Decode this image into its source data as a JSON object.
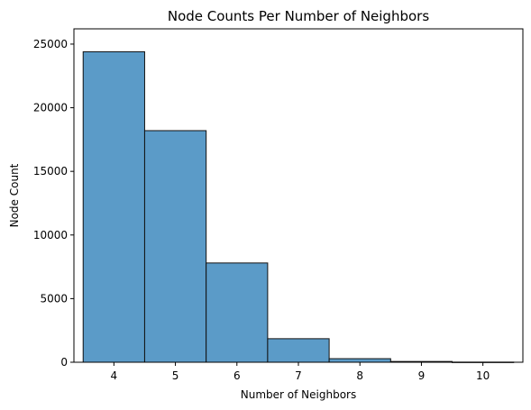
{
  "chart_data": {
    "type": "bar",
    "title": "Node Counts Per Number of Neighbors",
    "xlabel": "Number of Neighbors",
    "ylabel": "Node Count",
    "categories": [
      4,
      5,
      6,
      7,
      8,
      9,
      10
    ],
    "values": [
      24400,
      18200,
      7800,
      1850,
      280,
      60,
      10
    ],
    "xlim": [
      3.35,
      10.65
    ],
    "ylim": [
      0,
      26200
    ],
    "xticks": [
      "4",
      "5",
      "6",
      "7",
      "8",
      "9",
      "10"
    ],
    "yticks": [
      "0",
      "5000",
      "10000",
      "15000",
      "20000",
      "25000"
    ],
    "grid": false,
    "colors": {
      "bar_fill": "#5b9bc8",
      "bar_edge": "#111111"
    }
  }
}
